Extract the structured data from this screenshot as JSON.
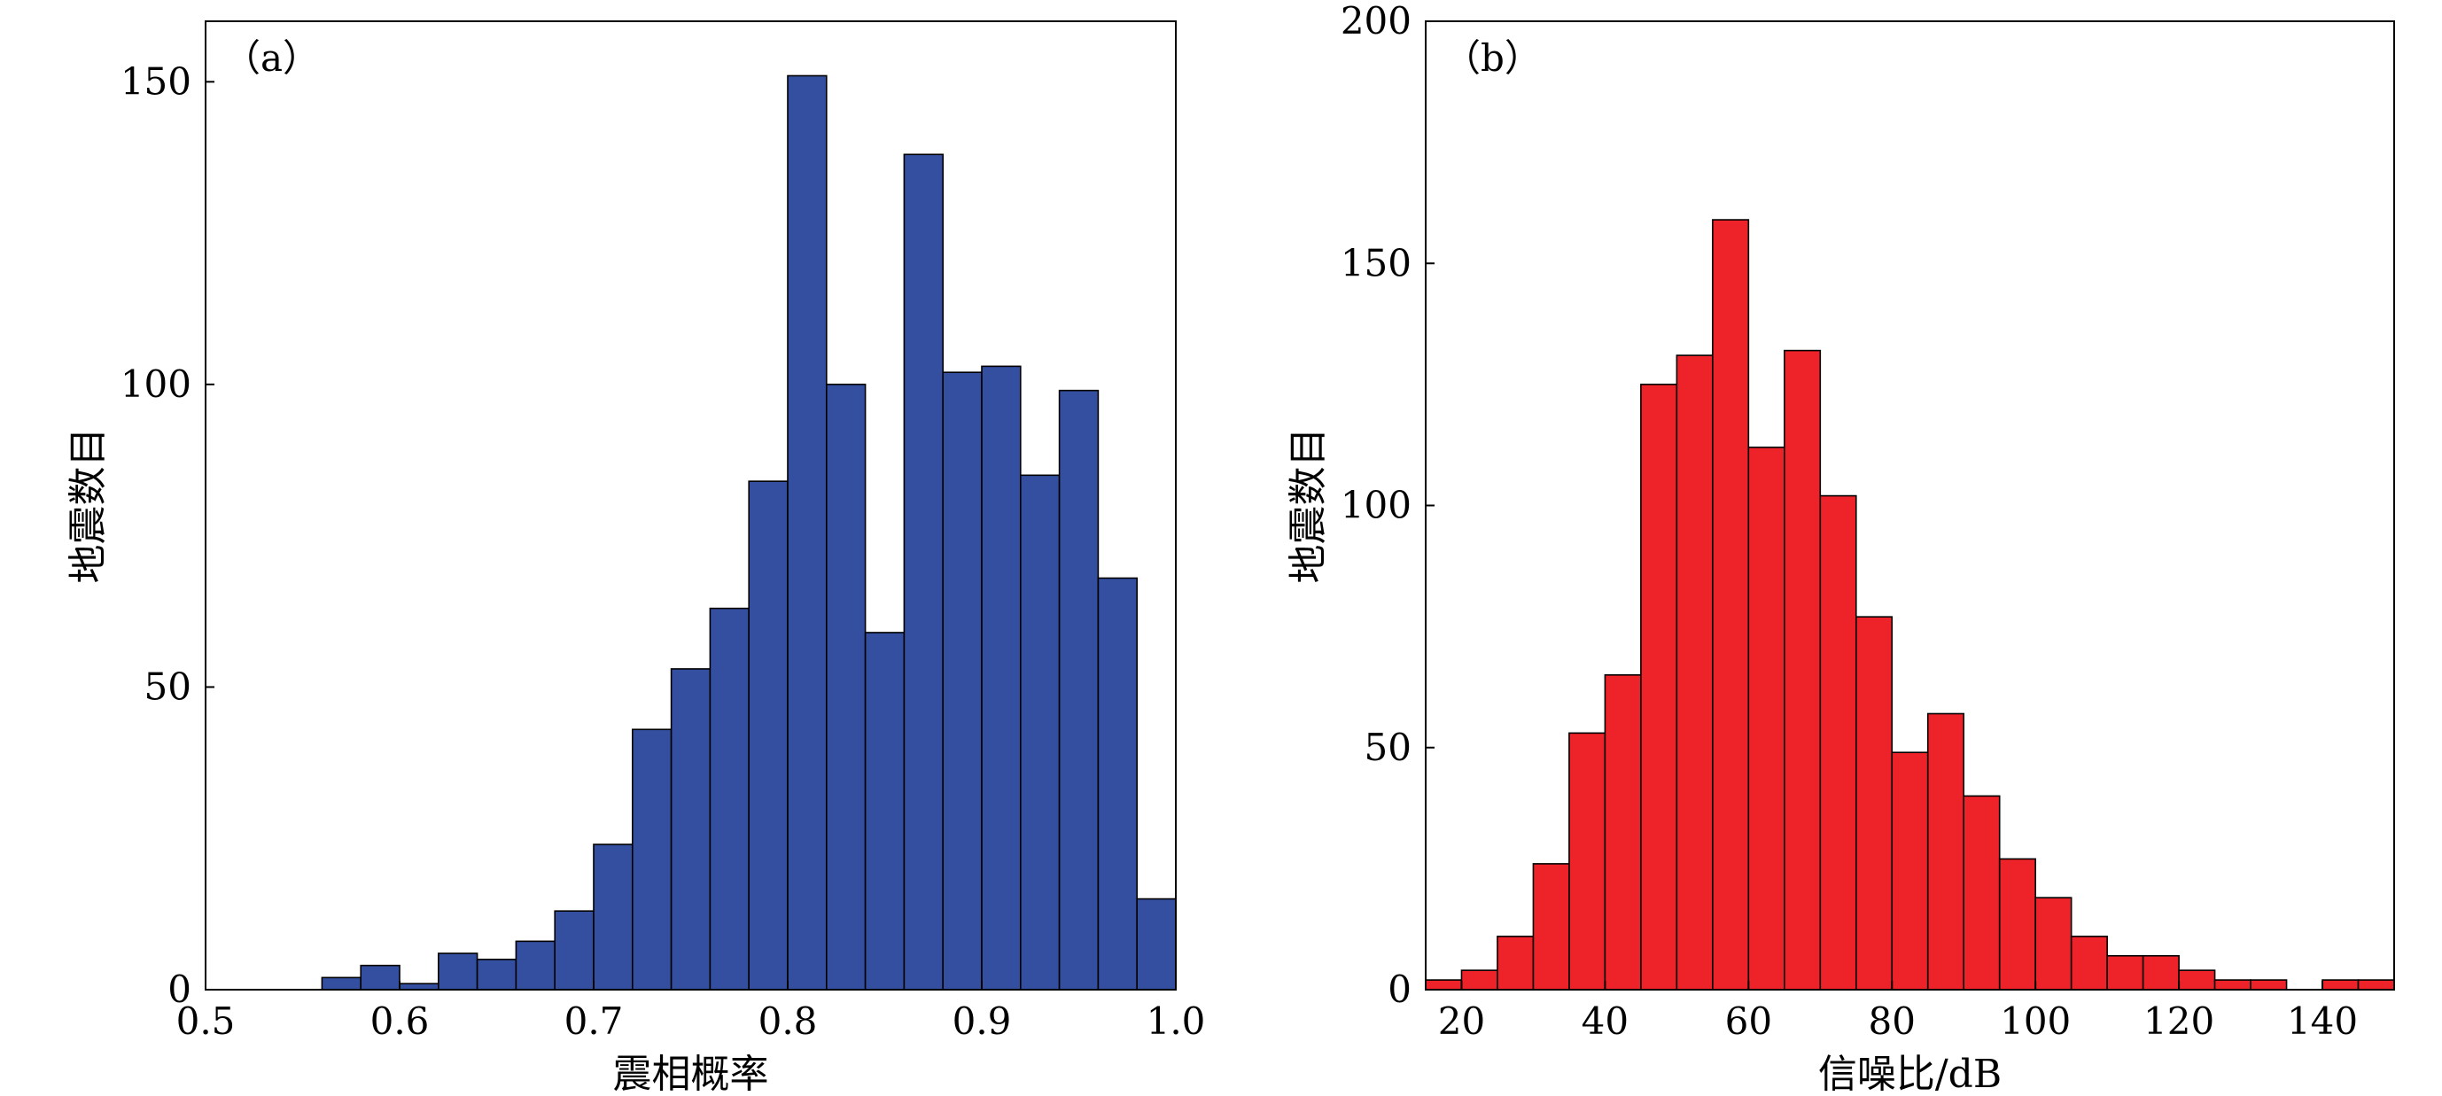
{
  "chart_data": [
    {
      "type": "bar",
      "panel_label": "（a）",
      "xlabel": "震相概率",
      "ylabel": "地震数目",
      "xlim": [
        0.5,
        1.0
      ],
      "ylim": [
        0,
        160
      ],
      "xticks": [
        "0.5",
        "0.6",
        "0.7",
        "0.8",
        "0.9",
        "1.0"
      ],
      "yticks": [
        "0",
        "50",
        "100",
        "150"
      ],
      "bin_edges": [
        0.56,
        0.58,
        0.6,
        0.62,
        0.64,
        0.66,
        0.68,
        0.7,
        0.72,
        0.74,
        0.76,
        0.78,
        0.8,
        0.82,
        0.84,
        0.86,
        0.88,
        0.9,
        0.92,
        0.94,
        0.96,
        0.98,
        1.0
      ],
      "values": [
        2,
        4,
        1,
        6,
        5,
        8,
        13,
        24,
        43,
        53,
        63,
        84,
        151,
        100,
        59,
        138,
        102,
        103,
        85,
        99,
        68,
        15
      ],
      "color": "#344f9f",
      "grid": false
    },
    {
      "type": "bar",
      "panel_label": "（b）",
      "xlabel": "信噪比/dB",
      "ylabel": "地震数目",
      "xlim": [
        15,
        150
      ],
      "ylim": [
        0,
        200
      ],
      "xticks": [
        "20",
        "40",
        "60",
        "80",
        "100",
        "120",
        "140"
      ],
      "yticks": [
        "0",
        "50",
        "100",
        "150",
        "200"
      ],
      "bin_edges": [
        15,
        20,
        25,
        30,
        35,
        40,
        45,
        50,
        55,
        60,
        65,
        70,
        75,
        80,
        85,
        90,
        95,
        100,
        105,
        110,
        115,
        120,
        125,
        130,
        135,
        140,
        145,
        150
      ],
      "values": [
        2,
        4,
        11,
        26,
        53,
        65,
        125,
        131,
        159,
        112,
        132,
        102,
        77,
        49,
        57,
        40,
        27,
        19,
        11,
        7,
        7,
        4,
        2,
        2,
        0,
        2,
        2
      ],
      "color": "#ee2229",
      "grid": false
    }
  ]
}
